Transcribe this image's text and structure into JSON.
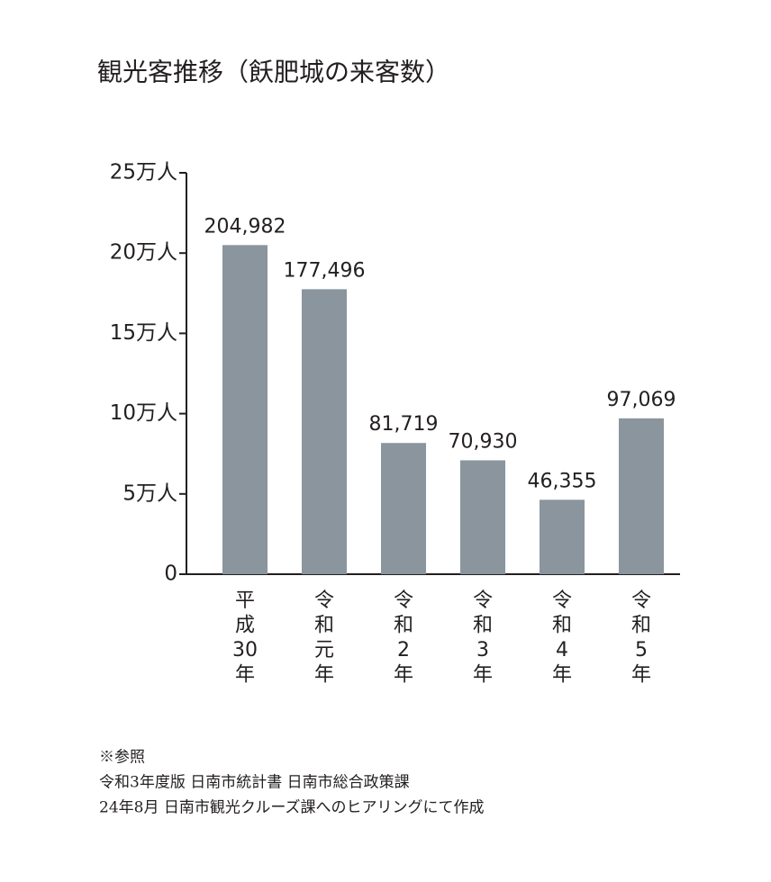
{
  "chart_data": {
    "type": "bar",
    "title": "観光客推移（飫肥城の来客数）",
    "categories": [
      "平成30年",
      "令和元年",
      "令和2年",
      "令和3年",
      "令和4年",
      "令和5年"
    ],
    "values": [
      204982,
      177496,
      81719,
      70930,
      46355,
      97069
    ],
    "value_labels": [
      "204,982",
      "177,496",
      "81,719",
      "70,930",
      "46,355",
      "97,069"
    ],
    "color": "#8a959e",
    "ylim": [
      0,
      250000
    ],
    "yticks": [
      0,
      {
        "value": 50000,
        "label": "5万人"
      },
      {
        "value": 100000,
        "label": "10万人"
      },
      {
        "value": 150000,
        "label": "15万人"
      },
      {
        "value": 200000,
        "label": "20万人"
      },
      {
        "value": 250000,
        "label": "25万人"
      }
    ],
    "notes": [
      "※参照",
      "令和3年度版 日南市統計書 日南市総合政策課",
      "24年8月 日南市観光クルーズ課へのヒアリングにて作成"
    ]
  }
}
